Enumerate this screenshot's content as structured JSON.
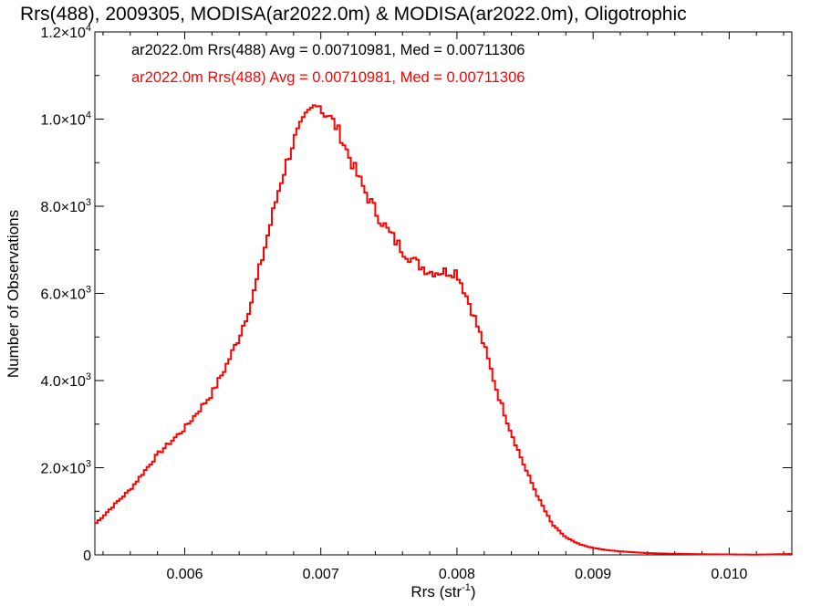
{
  "chart_data": {
    "type": "line",
    "title": "Rrs(488), 2009305, MODISA(ar2022.0m) & MODISA(ar2022.0m), Oligotrophic",
    "xlabel": {
      "base": "Rrs (str",
      "sup": "-1",
      "suffix": ")"
    },
    "ylabel": "Number of Observations",
    "xlim": [
      0.00534,
      0.01046
    ],
    "ylim": [
      0,
      12000
    ],
    "x_ticks": [
      0.006,
      0.007,
      0.008,
      0.009,
      0.01
    ],
    "x_tick_labels": [
      "0.006",
      "0.007",
      "0.008",
      "0.009",
      "0.010"
    ],
    "y_ticks": [
      0,
      2000,
      4000,
      6000,
      8000,
      10000,
      12000
    ],
    "y_tick_labels": [
      {
        "text": "0",
        "sup": ""
      },
      {
        "text": "2.0×10",
        "sup": "3"
      },
      {
        "text": "4.0×10",
        "sup": "3"
      },
      {
        "text": "6.0×10",
        "sup": "3"
      },
      {
        "text": "8.0×10",
        "sup": "3"
      },
      {
        "text": "1.0×10",
        "sup": "4"
      },
      {
        "text": "1.2×10",
        "sup": "4"
      }
    ],
    "grid": false,
    "legend_position": "top-left",
    "legend": [
      {
        "text": "ar2022.0m Rrs(488) Avg = 0.00710981, Med = 0.00711306",
        "color": "#000000"
      },
      {
        "text": "ar2022.0m Rrs(488) Avg = 0.00710981, Med = 0.00711306",
        "color": "#ff0000"
      }
    ],
    "series": [
      {
        "color": "#ff0000",
        "style": "step",
        "x": [
          0.00534,
          0.0055,
          0.0056,
          0.0057,
          0.0058,
          0.0059,
          0.006,
          0.0061,
          0.0062,
          0.0063,
          0.0064,
          0.0065,
          0.0066,
          0.0067,
          0.0068,
          0.00685,
          0.0069,
          0.00695,
          0.00698,
          0.007,
          0.00705,
          0.0071,
          0.00715,
          0.0072,
          0.0073,
          0.0074,
          0.0075,
          0.0076,
          0.0077,
          0.00775,
          0.0078,
          0.0079,
          0.008,
          0.0081,
          0.0082,
          0.0083,
          0.0084,
          0.0085,
          0.0086,
          0.0087,
          0.0088,
          0.0089,
          0.009,
          0.0091,
          0.0092,
          0.0093,
          0.0094,
          0.0096,
          0.0098,
          0.01,
          0.0102,
          0.01046
        ],
        "y": [
          700,
          1200,
          1500,
          1900,
          2300,
          2600,
          2900,
          3300,
          3700,
          4300,
          5000,
          5900,
          7200,
          8500,
          9500,
          9800,
          10100,
          10300,
          10500,
          10200,
          10100,
          9900,
          9600,
          9200,
          8500,
          7900,
          7400,
          7000,
          6700,
          6600,
          6500,
          6500,
          6500,
          5700,
          4800,
          3700,
          2800,
          2000,
          1300,
          700,
          400,
          240,
          160,
          110,
          80,
          60,
          40,
          25,
          15,
          10,
          5,
          20
        ]
      }
    ]
  }
}
